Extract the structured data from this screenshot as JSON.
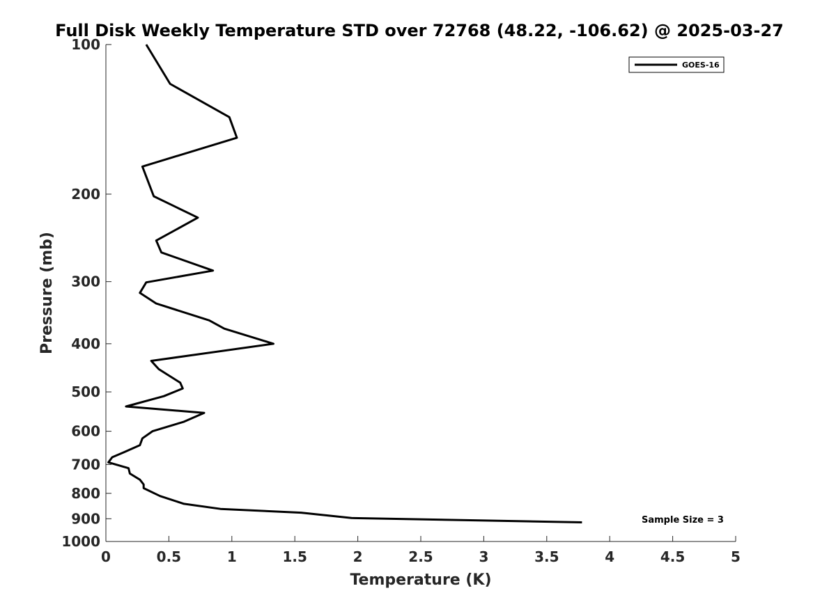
{
  "chart_data": {
    "type": "line",
    "title": "Full Disk Weekly Temperature STD over 72768 (48.22, -106.62) @ 2025-03-27",
    "xlabel": "Temperature (K)",
    "ylabel": "Pressure (mb)",
    "xlim": [
      0,
      5
    ],
    "ylim": [
      100,
      1000
    ],
    "y_scale": "log",
    "y_reversed": true,
    "x_ticks": [
      0,
      0.5,
      1,
      1.5,
      2,
      2.5,
      3,
      3.5,
      4,
      4.5,
      5
    ],
    "x_tick_labels": [
      "0",
      "0.5",
      "1",
      "1.5",
      "2",
      "2.5",
      "3",
      "3.5",
      "4",
      "4.5",
      "5"
    ],
    "y_ticks": [
      100,
      200,
      300,
      400,
      500,
      600,
      700,
      800,
      900,
      1000
    ],
    "y_tick_labels": [
      "100",
      "200",
      "300",
      "400",
      "500",
      "600",
      "700",
      "800",
      "900",
      "1000"
    ],
    "grid": false,
    "legend_position": "top-right",
    "annotation": "Sample Size = 3",
    "series": [
      {
        "name": "GOES-16",
        "color": "#000000",
        "x": [
          0.32,
          0.51,
          0.98,
          1.04,
          0.29,
          0.38,
          0.73,
          0.4,
          0.44,
          0.85,
          0.32,
          0.27,
          0.4,
          0.82,
          0.94,
          1.33,
          0.36,
          0.42,
          0.59,
          0.61,
          0.46,
          0.16,
          0.78,
          0.62,
          0.37,
          0.29,
          0.27,
          0.15,
          0.05,
          0.02,
          0.18,
          0.19,
          0.27,
          0.3,
          0.3,
          0.43,
          0.62,
          0.91,
          1.55,
          1.95,
          3.78
        ],
        "y": [
          100,
          120,
          140,
          154,
          176,
          202,
          223,
          248,
          262,
          285,
          301,
          316,
          332,
          359,
          373,
          400,
          433,
          450,
          479,
          492,
          510,
          535,
          551,
          574,
          600,
          620,
          640,
          660,
          677,
          693,
          712,
          730,
          751,
          768,
          781,
          810,
          840,
          860,
          875,
          897,
          915
        ]
      }
    ]
  }
}
